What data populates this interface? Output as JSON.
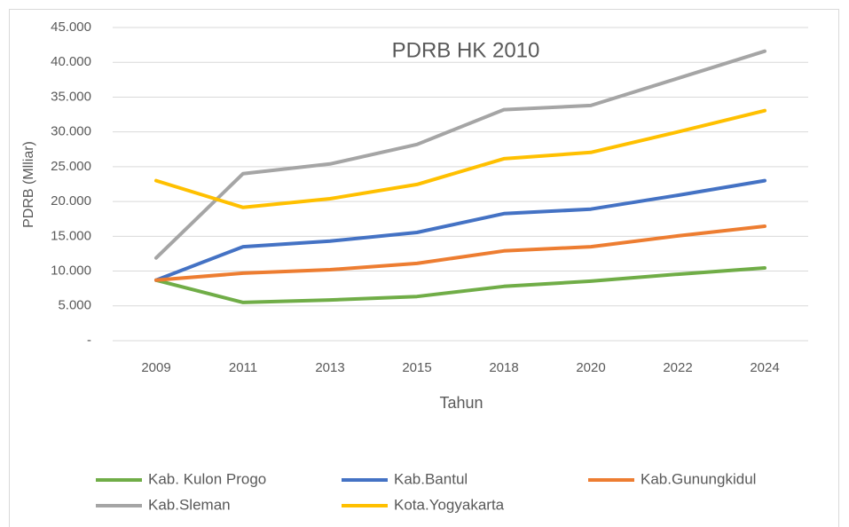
{
  "chart_data": {
    "type": "line",
    "title": "PDRB HK 2010",
    "x_label": "Tahun",
    "y_label": "PDRB (Mlliar)",
    "categories": [
      "2009",
      "2011",
      "2013",
      "2015",
      "2018",
      "2020",
      "2022",
      "2024"
    ],
    "series": [
      {
        "name": "Kab. Kulon Progo",
        "color": "#70ad47",
        "values": [
          8700,
          5500,
          5850,
          6350,
          7800,
          8550,
          9550,
          10450
        ]
      },
      {
        "name": "Kab.Bantul",
        "color": "#4472c4",
        "values": [
          8700,
          13500,
          14300,
          15550,
          18250,
          18900,
          20900,
          23000
        ]
      },
      {
        "name": "Kab.Gunungkidul",
        "color": "#ed7d31",
        "values": [
          8700,
          9700,
          10200,
          11100,
          12900,
          13500,
          15050,
          16450
        ]
      },
      {
        "name": "Kab.Sleman",
        "color": "#a5a5a5",
        "values": [
          11900,
          24000,
          25400,
          28200,
          33200,
          33800,
          37700,
          41600
        ]
      },
      {
        "name": "Kota.Yogyakarta",
        "color": "#ffc000",
        "values": [
          23000,
          19150,
          20400,
          22450,
          26150,
          27050,
          30000,
          33050
        ]
      }
    ],
    "ylim": [
      0,
      45000
    ],
    "yticks": [
      {
        "value": 0,
        "label": "-"
      },
      {
        "value": 5000,
        "label": "5.000"
      },
      {
        "value": 10000,
        "label": "10.000"
      },
      {
        "value": 15000,
        "label": "15.000"
      },
      {
        "value": 20000,
        "label": "20.000"
      },
      {
        "value": 25000,
        "label": "25.000"
      },
      {
        "value": 30000,
        "label": "30.000"
      },
      {
        "value": 35000,
        "label": "35.000"
      },
      {
        "value": 40000,
        "label": "40.000"
      },
      {
        "value": 45000,
        "label": "45.000"
      }
    ],
    "grid": true,
    "legend": "bottom"
  }
}
